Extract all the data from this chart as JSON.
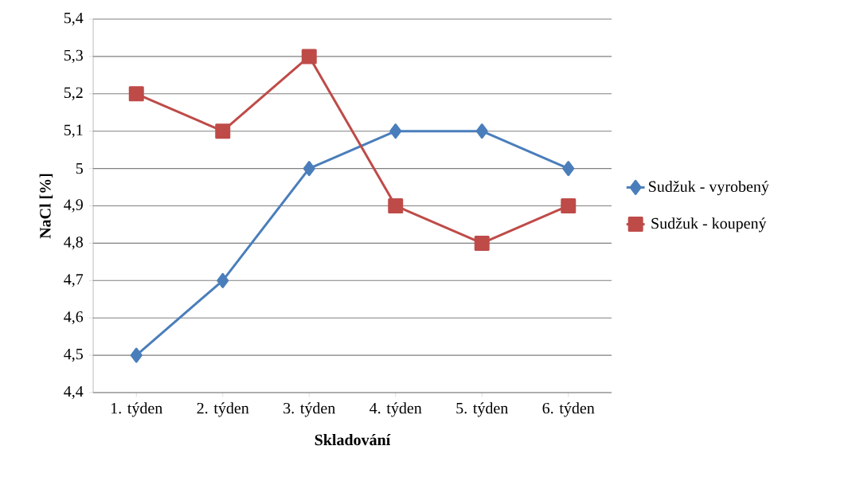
{
  "chart_data": {
    "type": "line",
    "xlabel": "Skladování",
    "ylabel": "NaCl [%]",
    "categories": [
      "1. týden",
      "2. týden",
      "3. týden",
      "4. týden",
      "5. týden",
      "6. týden"
    ],
    "series": [
      {
        "name": "Sudžuk - vyrobený",
        "color": "#4a7ebb",
        "marker": "diamond",
        "values": [
          4.5,
          4.7,
          5.0,
          5.1,
          5.1,
          5.0
        ]
      },
      {
        "name": "Sudžuk - koupený",
        "color": "#be4b48",
        "marker": "square",
        "values": [
          5.2,
          5.1,
          5.3,
          4.9,
          4.8,
          4.9
        ]
      }
    ],
    "ylim": [
      4.4,
      5.4
    ],
    "yticks": [
      {
        "value": 4.4,
        "label": "4,4"
      },
      {
        "value": 4.5,
        "label": "4,5"
      },
      {
        "value": 4.6,
        "label": "4,6"
      },
      {
        "value": 4.7,
        "label": "4,7"
      },
      {
        "value": 4.8,
        "label": "4,8"
      },
      {
        "value": 4.9,
        "label": "4,9"
      },
      {
        "value": 5,
        "label": "5"
      },
      {
        "value": 5.1,
        "label": "5,1"
      },
      {
        "value": 5.2,
        "label": "5,2"
      },
      {
        "value": 5.3,
        "label": "5,3"
      },
      {
        "value": 5.4,
        "label": "5,4"
      }
    ],
    "grid": "y",
    "legend": "right",
    "line_style": "solid"
  }
}
